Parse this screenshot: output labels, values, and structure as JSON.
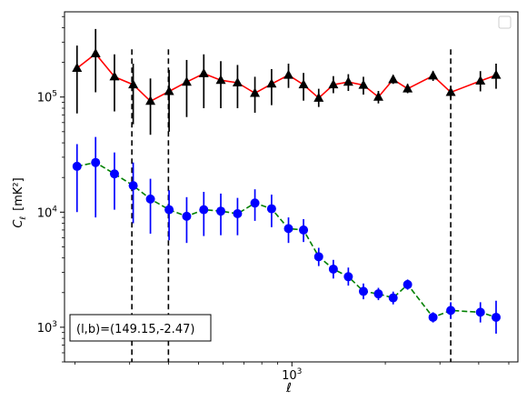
{
  "chart_data": {
    "type": "line",
    "xscale": "log",
    "yscale": "log",
    "xlabel": "ℓ",
    "ylabel_main": "C",
    "ylabel_sub": "ℓ",
    "ylabel_unit": "[mK²]",
    "xlim": [
      185,
      5350
    ],
    "ylim": [
      500,
      550000
    ],
    "x_major_ticks": [
      {
        "value": 1000,
        "base": "10",
        "exp": "3"
      }
    ],
    "y_major_ticks": [
      {
        "value": 1000,
        "base": "10",
        "exp": "3"
      },
      {
        "value": 10000,
        "base": "10",
        "exp": "4"
      },
      {
        "value": 100000,
        "base": "10",
        "exp": "5"
      }
    ],
    "annotation": "(l,b)=(149.15,-2.47)",
    "legend": {
      "placement": "top-right",
      "entries": []
    },
    "vlines": [
      305,
      400,
      3250
    ],
    "series": [
      {
        "marker": "triangle",
        "line_color": "#ff0000",
        "marker_color": "#000000",
        "errorbar_color": "#000000",
        "linestyle": "solid",
        "points": [
          {
            "x": 203,
            "y": 178000,
            "lo": 72000,
            "hi": 280000
          },
          {
            "x": 233,
            "y": 238000,
            "lo": 110000,
            "hi": 390000
          },
          {
            "x": 268,
            "y": 150000,
            "lo": 75000,
            "hi": 235000
          },
          {
            "x": 308,
            "y": 128000,
            "lo": 58000,
            "hi": 195000
          },
          {
            "x": 350,
            "y": 92000,
            "lo": 47000,
            "hi": 145000
          },
          {
            "x": 402,
            "y": 112000,
            "lo": 50000,
            "hi": 172000
          },
          {
            "x": 458,
            "y": 135000,
            "lo": 67000,
            "hi": 210000
          },
          {
            "x": 520,
            "y": 160000,
            "lo": 80000,
            "hi": 235000
          },
          {
            "x": 590,
            "y": 140000,
            "lo": 80000,
            "hi": 205000
          },
          {
            "x": 668,
            "y": 133000,
            "lo": 80000,
            "hi": 190000
          },
          {
            "x": 760,
            "y": 108000,
            "lo": 73000,
            "hi": 150000
          },
          {
            "x": 860,
            "y": 130000,
            "lo": 85000,
            "hi": 175000
          },
          {
            "x": 975,
            "y": 155000,
            "lo": 120000,
            "hi": 195000
          },
          {
            "x": 1090,
            "y": 128000,
            "lo": 93000,
            "hi": 162000
          },
          {
            "x": 1220,
            "y": 98000,
            "lo": 82000,
            "hi": 118000
          },
          {
            "x": 1360,
            "y": 128000,
            "lo": 108000,
            "hi": 152000
          },
          {
            "x": 1520,
            "y": 135000,
            "lo": 113000,
            "hi": 158000
          },
          {
            "x": 1700,
            "y": 127000,
            "lo": 105000,
            "hi": 150000
          },
          {
            "x": 1900,
            "y": 100000,
            "lo": 88000,
            "hi": 113000
          },
          {
            "x": 2120,
            "y": 142000,
            "lo": 130000,
            "hi": 155000
          },
          {
            "x": 2360,
            "y": 118000,
            "lo": 108000,
            "hi": 130000
          },
          {
            "x": 2850,
            "y": 153000,
            "lo": 138000,
            "hi": 168000
          },
          {
            "x": 3250,
            "y": 110000,
            "lo": 97000,
            "hi": 125000
          },
          {
            "x": 4050,
            "y": 138000,
            "lo": 112000,
            "hi": 168000
          },
          {
            "x": 4550,
            "y": 155000,
            "lo": 118000,
            "hi": 195000
          }
        ]
      },
      {
        "marker": "circle",
        "line_color": "#008000",
        "marker_color": "#0000ff",
        "errorbar_color": "#0000ff",
        "linestyle": "dashed",
        "points": [
          {
            "x": 203,
            "y": 25000,
            "lo": 10000,
            "hi": 39000
          },
          {
            "x": 233,
            "y": 27000,
            "lo": 9000,
            "hi": 45000
          },
          {
            "x": 268,
            "y": 21500,
            "lo": 10500,
            "hi": 33000
          },
          {
            "x": 308,
            "y": 17000,
            "lo": 8000,
            "hi": 27000
          },
          {
            "x": 350,
            "y": 13000,
            "lo": 6500,
            "hi": 19500
          },
          {
            "x": 402,
            "y": 10500,
            "lo": 5700,
            "hi": 15500
          },
          {
            "x": 458,
            "y": 9200,
            "lo": 5400,
            "hi": 13500
          },
          {
            "x": 520,
            "y": 10500,
            "lo": 6200,
            "hi": 15000
          },
          {
            "x": 590,
            "y": 10200,
            "lo": 6300,
            "hi": 14500
          },
          {
            "x": 668,
            "y": 9700,
            "lo": 6300,
            "hi": 13300
          },
          {
            "x": 760,
            "y": 12000,
            "lo": 8400,
            "hi": 15800
          },
          {
            "x": 860,
            "y": 10700,
            "lo": 7400,
            "hi": 14200
          },
          {
            "x": 975,
            "y": 7200,
            "lo": 5400,
            "hi": 9000
          },
          {
            "x": 1090,
            "y": 7000,
            "lo": 5500,
            "hi": 8700
          },
          {
            "x": 1220,
            "y": 4100,
            "lo": 3400,
            "hi": 4900
          },
          {
            "x": 1360,
            "y": 3200,
            "lo": 2650,
            "hi": 3850
          },
          {
            "x": 1520,
            "y": 2750,
            "lo": 2300,
            "hi": 3300
          },
          {
            "x": 1700,
            "y": 2050,
            "lo": 1750,
            "hi": 2400
          },
          {
            "x": 1900,
            "y": 1950,
            "lo": 1720,
            "hi": 2200
          },
          {
            "x": 2120,
            "y": 1800,
            "lo": 1580,
            "hi": 2040
          },
          {
            "x": 2360,
            "y": 2350,
            "lo": 2120,
            "hi": 2600
          },
          {
            "x": 2850,
            "y": 1220,
            "lo": 1100,
            "hi": 1350
          },
          {
            "x": 3250,
            "y": 1400,
            "lo": 1180,
            "hi": 1650
          },
          {
            "x": 4050,
            "y": 1350,
            "lo": 1100,
            "hi": 1650
          },
          {
            "x": 4550,
            "y": 1220,
            "lo": 880,
            "hi": 1700
          }
        ]
      }
    ]
  }
}
